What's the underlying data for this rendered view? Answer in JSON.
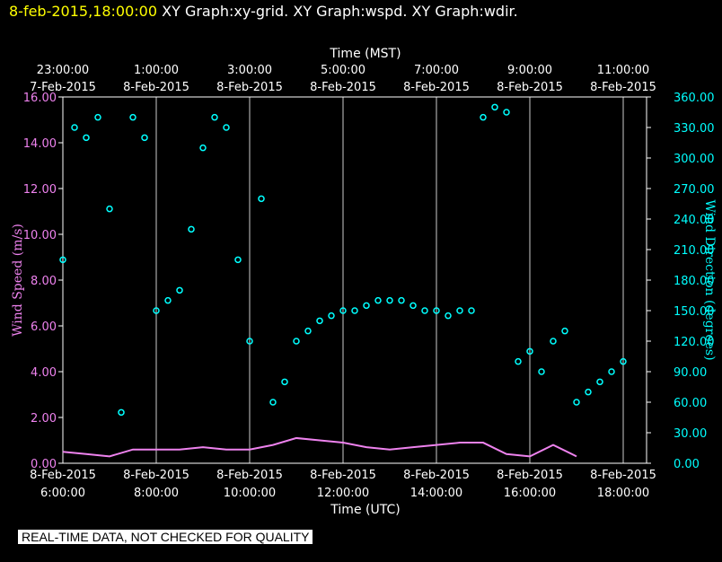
{
  "header": {
    "timestamp": "8-feb-2015,18:00:00",
    "graph_titles": "XY Graph:xy-grid.  XY Graph:wspd.  XY Graph:wdir."
  },
  "footer": {
    "disclaimer": "REAL-TIME DATA, NOT CHECKED FOR QUALITY"
  },
  "colors": {
    "background": "#000000",
    "wind_speed": "#ee82ee",
    "wind_direction": "#00ffff",
    "grid": "#ffffff",
    "timestamp": "#ffff00"
  },
  "chart_data": {
    "type": "scatter",
    "x_top_label": "Time (MST)",
    "x_bottom_label": "Time (UTC)",
    "x_top_ticks": [
      {
        "time": "23:00:00",
        "date": "7-Feb-2015"
      },
      {
        "time": "1:00:00",
        "date": "8-Feb-2015"
      },
      {
        "time": "3:00:00",
        "date": "8-Feb-2015"
      },
      {
        "time": "5:00:00",
        "date": "8-Feb-2015"
      },
      {
        "time": "7:00:00",
        "date": "8-Feb-2015"
      },
      {
        "time": "9:00:00",
        "date": "8-Feb-2015"
      },
      {
        "time": "11:00:00",
        "date": "8-Feb-2015"
      }
    ],
    "x_bottom_ticks": [
      {
        "date": "8-Feb-2015",
        "time": "6:00:00"
      },
      {
        "date": "8-Feb-2015",
        "time": "8:00:00"
      },
      {
        "date": "8-Feb-2015",
        "time": "10:00:00"
      },
      {
        "date": "8-Feb-2015",
        "time": "12:00:00"
      },
      {
        "date": "8-Feb-2015",
        "time": "14:00:00"
      },
      {
        "date": "8-Feb-2015",
        "time": "16:00:00"
      },
      {
        "date": "8-Feb-2015",
        "time": "18:00:00"
      }
    ],
    "x_range_utc_hours": [
      6,
      18.5
    ],
    "y_left": {
      "label": "Wind Speed (m/s)",
      "range": [
        0,
        16
      ],
      "ticks": [
        "0.00",
        "2.00",
        "4.00",
        "6.00",
        "8.00",
        "10.00",
        "12.00",
        "14.00",
        "16.00"
      ]
    },
    "y_right": {
      "label": "Wind Direction (degrees)",
      "range": [
        0,
        360
      ],
      "ticks": [
        "0.00",
        "30.00",
        "60.00",
        "90.00",
        "120.00",
        "150.00",
        "180.00",
        "210.00",
        "240.00",
        "270.00",
        "300.00",
        "330.00",
        "360.00"
      ]
    },
    "grid": true,
    "series": [
      {
        "axis": "left",
        "style": "line",
        "x": [
          6.0,
          6.5,
          7.0,
          7.5,
          8.0,
          8.5,
          9.0,
          9.5,
          10.0,
          10.5,
          11.0,
          11.5,
          12.0,
          12.5,
          13.0,
          13.5,
          14.0,
          14.5,
          15.0,
          15.5,
          16.0,
          16.5,
          17.0
        ],
        "y": [
          0.5,
          0.4,
          0.3,
          0.6,
          0.6,
          0.6,
          0.7,
          0.6,
          0.6,
          0.8,
          1.1,
          1.0,
          0.9,
          0.7,
          0.6,
          0.7,
          0.8,
          0.9,
          0.9,
          0.4,
          0.3,
          0.8,
          0.3
        ]
      },
      {
        "axis": "right",
        "style": "points",
        "x": [
          6.0,
          6.25,
          6.5,
          6.75,
          7.0,
          7.25,
          7.5,
          7.75,
          8.0,
          8.25,
          8.5,
          8.75,
          9.0,
          9.25,
          9.5,
          9.75,
          10.0,
          10.25,
          10.5,
          10.75,
          11.0,
          11.25,
          11.5,
          11.75,
          12.0,
          12.25,
          12.5,
          12.75,
          13.0,
          13.25,
          13.5,
          13.75,
          14.0,
          14.25,
          14.5,
          14.75,
          15.0,
          15.25,
          15.5,
          15.75,
          16.0,
          16.25,
          16.5,
          16.75,
          17.0,
          17.25,
          17.5,
          17.75,
          18.0
        ],
        "y": [
          200,
          330,
          320,
          340,
          250,
          50,
          340,
          320,
          150,
          160,
          170,
          230,
          310,
          340,
          330,
          200,
          120,
          260,
          60,
          80,
          120,
          130,
          140,
          145,
          150,
          150,
          155,
          160,
          160,
          160,
          155,
          150,
          150,
          145,
          150,
          150,
          340,
          350,
          345,
          100,
          110,
          90,
          120,
          130,
          60,
          70,
          80,
          90,
          100
        ]
      }
    ]
  }
}
